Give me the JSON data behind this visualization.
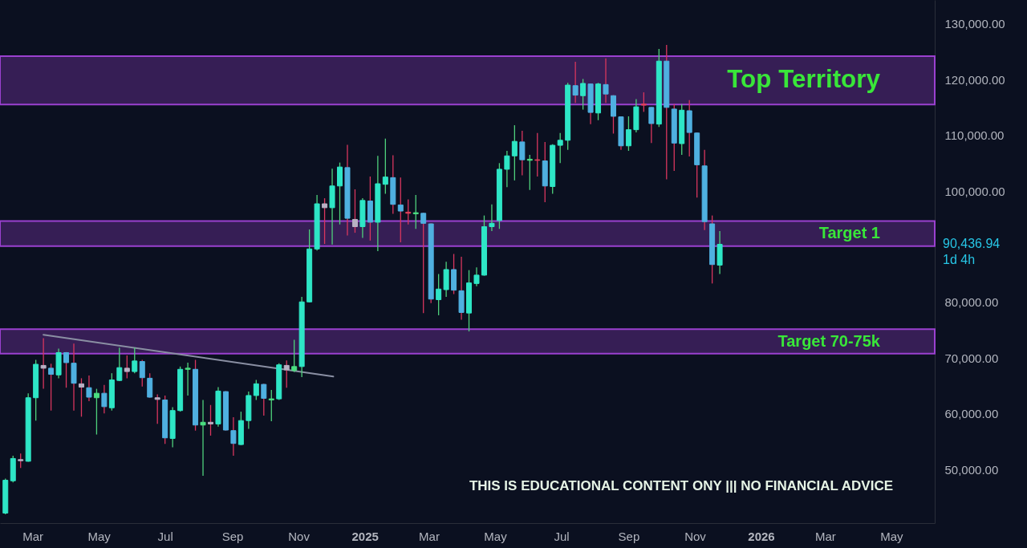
{
  "chart_data": {
    "type": "candlestick",
    "x": [
      "2024-02-05",
      "2024-02-12",
      "2024-02-19",
      "2024-02-26",
      "2024-03-04",
      "2024-03-11",
      "2024-03-18",
      "2024-03-25",
      "2024-04-01",
      "2024-04-08",
      "2024-04-15",
      "2024-04-22",
      "2024-04-29",
      "2024-05-06",
      "2024-05-13",
      "2024-05-20",
      "2024-05-27",
      "2024-06-03",
      "2024-06-10",
      "2024-06-17",
      "2024-06-24",
      "2024-07-01",
      "2024-07-08",
      "2024-07-15",
      "2024-07-22",
      "2024-07-29",
      "2024-08-05",
      "2024-08-12",
      "2024-08-19",
      "2024-08-26",
      "2024-09-02",
      "2024-09-09",
      "2024-09-16",
      "2024-09-23",
      "2024-09-30",
      "2024-10-07",
      "2024-10-14",
      "2024-10-21",
      "2024-10-28",
      "2024-11-04",
      "2024-11-11",
      "2024-11-18",
      "2024-11-25",
      "2024-12-02",
      "2024-12-09",
      "2024-12-16",
      "2024-12-23",
      "2024-12-30",
      "2025-01-06",
      "2025-01-13",
      "2025-01-20",
      "2025-01-27",
      "2025-02-03",
      "2025-02-10",
      "2025-02-17",
      "2025-02-24",
      "2025-03-03",
      "2025-03-10",
      "2025-03-17",
      "2025-03-24",
      "2025-03-31",
      "2025-04-07",
      "2025-04-14",
      "2025-04-21",
      "2025-04-28",
      "2025-05-05",
      "2025-05-12",
      "2025-05-19",
      "2025-05-26",
      "2025-06-02",
      "2025-06-09",
      "2025-06-16",
      "2025-06-23",
      "2025-06-30",
      "2025-07-07",
      "2025-07-14",
      "2025-07-21",
      "2025-07-28",
      "2025-08-04",
      "2025-08-11",
      "2025-08-18",
      "2025-08-25",
      "2025-09-01",
      "2025-09-08",
      "2025-09-15",
      "2025-09-22",
      "2025-09-29",
      "2025-10-06",
      "2025-10-13",
      "2025-10-20",
      "2025-10-27",
      "2025-11-03",
      "2025-11-10",
      "2025-11-17",
      "2025-11-24"
    ],
    "ohlc": [
      [
        42200,
        48400,
        42000,
        48100
      ],
      [
        48000,
        52500,
        47700,
        52000
      ],
      [
        51800,
        52900,
        50300,
        51600
      ],
      [
        51500,
        63700,
        51400,
        62900
      ],
      [
        62900,
        69700,
        58800,
        68900
      ],
      [
        68700,
        73600,
        64500,
        68200
      ],
      [
        68200,
        69000,
        60600,
        67100
      ],
      [
        67000,
        71700,
        66400,
        71000
      ],
      [
        71000,
        71100,
        64700,
        69200
      ],
      [
        69100,
        72600,
        60600,
        65500
      ],
      [
        65400,
        66400,
        59500,
        64800
      ],
      [
        64700,
        66900,
        62300,
        63000
      ],
      [
        62900,
        64500,
        56300,
        63700
      ],
      [
        63700,
        65200,
        60100,
        61300
      ],
      [
        61100,
        67300,
        60600,
        66100
      ],
      [
        66000,
        71900,
        65900,
        68300
      ],
      [
        68200,
        70500,
        66400,
        67600
      ],
      [
        67600,
        71900,
        67300,
        69500
      ],
      [
        69400,
        69700,
        64900,
        66500
      ],
      [
        66400,
        67300,
        62900,
        63000
      ],
      [
        62900,
        63500,
        58200,
        62600
      ],
      [
        62500,
        63300,
        54600,
        55700
      ],
      [
        55600,
        61200,
        54000,
        60600
      ],
      [
        60600,
        68500,
        60400,
        68000
      ],
      [
        68000,
        69200,
        63300,
        68200
      ],
      [
        68000,
        69700,
        57000,
        58000
      ],
      [
        58000,
        62500,
        48900,
        58500
      ],
      [
        58500,
        61600,
        56100,
        58200
      ],
      [
        58200,
        64800,
        57700,
        64100
      ],
      [
        64000,
        64100,
        57000,
        57100
      ],
      [
        57000,
        59400,
        52500,
        54700
      ],
      [
        54500,
        60400,
        54400,
        58800
      ],
      [
        58800,
        64000,
        57300,
        63300
      ],
      [
        63300,
        66100,
        62500,
        65400
      ],
      [
        65300,
        65400,
        59700,
        62800
      ],
      [
        62500,
        64300,
        58700,
        62700
      ],
      [
        62700,
        69100,
        62500,
        68800
      ],
      [
        68700,
        69600,
        64700,
        67900
      ],
      [
        67800,
        73300,
        67500,
        68500
      ],
      [
        68500,
        81000,
        66600,
        80100
      ],
      [
        80100,
        93100,
        80000,
        89600
      ],
      [
        89600,
        99300,
        89300,
        97700
      ],
      [
        97700,
        98700,
        90500,
        97000
      ],
      [
        97000,
        104000,
        90400,
        100900
      ],
      [
        100900,
        105100,
        94000,
        104300
      ],
      [
        104200,
        108300,
        92000,
        95100
      ],
      [
        94900,
        100300,
        92500,
        93600
      ],
      [
        93600,
        98700,
        91600,
        98300
      ],
      [
        98200,
        102600,
        91100,
        94400
      ],
      [
        94400,
        106300,
        89200,
        101300
      ],
      [
        101200,
        109400,
        99500,
        102500
      ],
      [
        102400,
        106400,
        95900,
        97600
      ],
      [
        97500,
        102400,
        90800,
        96400
      ],
      [
        96200,
        98500,
        94000,
        96000
      ],
      [
        95900,
        99300,
        93200,
        96100
      ],
      [
        96000,
        96100,
        78100,
        94200
      ],
      [
        94100,
        94200,
        79900,
        80600
      ],
      [
        80500,
        85100,
        77700,
        82400
      ],
      [
        82300,
        87300,
        81000,
        85900
      ],
      [
        85900,
        88700,
        81500,
        82200
      ],
      [
        82100,
        88200,
        76900,
        78200
      ],
      [
        78100,
        85800,
        74800,
        83500
      ],
      [
        83400,
        86300,
        82900,
        84900
      ],
      [
        84900,
        95600,
        84800,
        93600
      ],
      [
        93600,
        97600,
        92800,
        94200
      ],
      [
        94700,
        105000,
        93200,
        103900
      ],
      [
        103900,
        107200,
        100700,
        106300
      ],
      [
        106300,
        111800,
        101900,
        108900
      ],
      [
        108800,
        110800,
        102800,
        105600
      ],
      [
        105500,
        106500,
        100200,
        105700
      ],
      [
        105600,
        110400,
        102600,
        105500
      ],
      [
        105400,
        108800,
        98000,
        100900
      ],
      [
        100800,
        108400,
        99500,
        108200
      ],
      [
        108200,
        110400,
        105000,
        109100
      ],
      [
        109100,
        119400,
        107400,
        119000
      ],
      [
        118900,
        123200,
        115800,
        117200
      ],
      [
        117100,
        120100,
        114600,
        119300
      ],
      [
        119200,
        119300,
        112000,
        114100
      ],
      [
        114000,
        119400,
        112700,
        119200
      ],
      [
        119100,
        123800,
        115800,
        117400
      ],
      [
        117100,
        117200,
        110300,
        113400
      ],
      [
        113300,
        113400,
        107400,
        108100
      ],
      [
        108100,
        113400,
        107200,
        111000
      ],
      [
        111000,
        116500,
        110500,
        115100
      ],
      [
        115600,
        117700,
        114200,
        115400
      ],
      [
        115000,
        115100,
        108600,
        112100
      ],
      [
        112000,
        125500,
        111500,
        123300
      ],
      [
        123300,
        126200,
        102100,
        115000
      ],
      [
        114700,
        115600,
        103600,
        108600
      ],
      [
        108500,
        115600,
        106500,
        114500
      ],
      [
        114400,
        116300,
        106200,
        110500
      ],
      [
        110400,
        110500,
        98800,
        104700
      ],
      [
        104500,
        107400,
        93000,
        94500
      ],
      [
        94100,
        95600,
        83400,
        86800
      ],
      [
        86700,
        92800,
        85100,
        90436.94
      ]
    ],
    "colors": [
      "#2ee6c6",
      "#2ee6c6",
      "#b8b0c4",
      "#2ee6c6",
      "#2ee6c6",
      "#b8b0c4",
      "#4fb0e0",
      "#2ee6c6",
      "#4fb0e0",
      "#4fb0e0",
      "#b8b0c4",
      "#4fb0e0",
      "#4ade80",
      "#4fb0e0",
      "#2ee6c6",
      "#2ee6c6",
      "#b8b0c4",
      "#2ee6c6",
      "#4fb0e0",
      "#4fb0e0",
      "#b8b0c4",
      "#4fb0e0",
      "#2ee6c6",
      "#2ee6c6",
      "#4ade80",
      "#4fb0e0",
      "#4ade80",
      "#b8b0c4",
      "#2ee6c6",
      "#4fb0e0",
      "#4fb0e0",
      "#2ee6c6",
      "#2ee6c6",
      "#2ee6c6",
      "#4fb0e0",
      "#4ade80",
      "#2ee6c6",
      "#b8b0c4",
      "#4ade80",
      "#2ee6c6",
      "#2ee6c6",
      "#2ee6c6",
      "#b8b0c4",
      "#2ee6c6",
      "#2ee6c6",
      "#4fb0e0",
      "#b8b0c4",
      "#2ee6c6",
      "#4fb0e0",
      "#2ee6c6",
      "#2ee6c6",
      "#4fb0e0",
      "#4fb0e0",
      "#e0405a",
      "#4ade80",
      "#4fb0e0",
      "#4fb0e0",
      "#2ee6c6",
      "#2ee6c6",
      "#4fb0e0",
      "#4fb0e0",
      "#2ee6c6",
      "#2ee6c6",
      "#2ee6c6",
      "#2ee6c6",
      "#2ee6c6",
      "#2ee6c6",
      "#2ee6c6",
      "#4fb0e0",
      "#4ade80",
      "#e0405a",
      "#4fb0e0",
      "#2ee6c6",
      "#2ee6c6",
      "#2ee6c6",
      "#4fb0e0",
      "#2ee6c6",
      "#4fb0e0",
      "#2ee6c6",
      "#4fb0e0",
      "#4fb0e0",
      "#4fb0e0",
      "#2ee6c6",
      "#2ee6c6",
      "#e0405a",
      "#4fb0e0",
      "#2ee6c6",
      "#4fb0e0",
      "#4fb0e0",
      "#2ee6c6",
      "#4fb0e0",
      "#4fb0e0",
      "#4fb0e0",
      "#4fb0e0",
      "#2ee6c6"
    ],
    "series": [
      {
        "type": "line",
        "x": [
          "2024-03-11",
          "2024-12-03"
        ],
        "values": [
          74200,
          66700
        ],
        "color": "#8a8fa3"
      }
    ],
    "bands": [
      {
        "axis": "y",
        "from": 115500,
        "to": 124200,
        "label": "Top Territory",
        "color": "#9b40d0"
      },
      {
        "axis": "y",
        "from": 90100,
        "to": 94600,
        "label": "Target 1",
        "color": "#9b40d0"
      },
      {
        "axis": "y",
        "from": 70800,
        "to": 75200,
        "label": "Target 70-75k",
        "color": "#9b40d0"
      }
    ],
    "annotations": [
      "90,436.94",
      "1d 4h",
      "THIS IS EDUCATIONAL CONTENT ONY ||| NO FINANCIAL ADVICE"
    ],
    "xlim": [
      "2024-01-31",
      "2026-06-10"
    ],
    "ylim": [
      40400,
      134270
    ],
    "xticks": [
      {
        "value": "2024-03-01",
        "label": "Mar"
      },
      {
        "value": "2024-05-01",
        "label": "May"
      },
      {
        "value": "2024-07-01",
        "label": "Jul"
      },
      {
        "value": "2024-09-01",
        "label": "Sep"
      },
      {
        "value": "2024-11-01",
        "label": "Nov"
      },
      {
        "value": "2025-01-01",
        "label": "2025"
      },
      {
        "value": "2025-03-01",
        "label": "Mar"
      },
      {
        "value": "2025-05-01",
        "label": "May"
      },
      {
        "value": "2025-07-01",
        "label": "Jul"
      },
      {
        "value": "2025-09-01",
        "label": "Sep"
      },
      {
        "value": "2025-11-01",
        "label": "Nov"
      },
      {
        "value": "2026-01-01",
        "label": "2026"
      },
      {
        "value": "2026-03-01",
        "label": "Mar"
      },
      {
        "value": "2026-05-01",
        "label": "May"
      }
    ],
    "yticks": [
      {
        "value": 50000,
        "label": "50,000.00"
      },
      {
        "value": 60000,
        "label": "60,000.00"
      },
      {
        "value": 70000,
        "label": "70,000.00"
      },
      {
        "value": 80000,
        "label": "80,000.00"
      },
      {
        "value": 100000,
        "label": "100,000.00"
      },
      {
        "value": 110000,
        "label": "110,000.00"
      },
      {
        "value": 120000,
        "label": "120,000.00"
      },
      {
        "value": 130000,
        "label": "130,000.00"
      }
    ],
    "grid": false
  }
}
